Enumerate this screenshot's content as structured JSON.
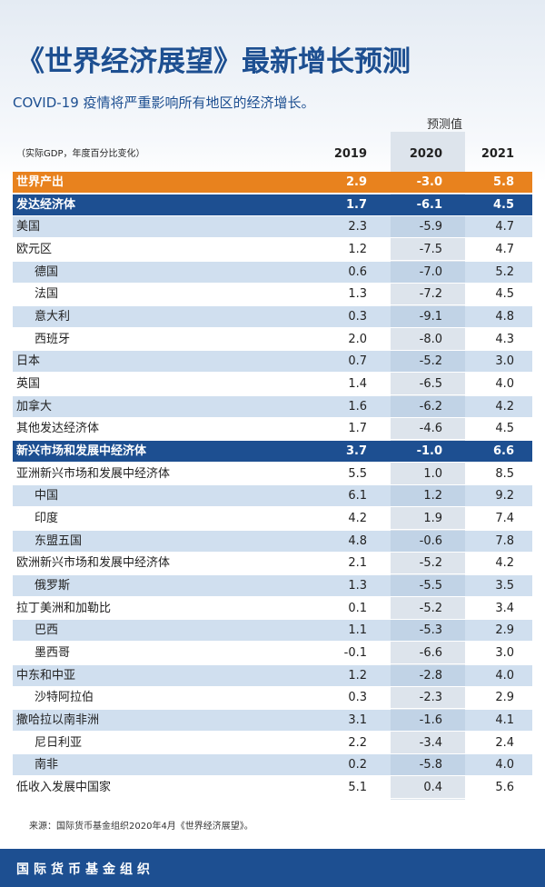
{
  "header": {
    "title": "《世界经济展望》最新增长预测",
    "subtitle": "COVID-19 疫情将严重影响所有地区的经济增长。",
    "forecast_label": "预测值"
  },
  "table": {
    "columns": [
      "（实际GDP，年度百分比变化）",
      "2019",
      "2020",
      "2021"
    ],
    "rows": [
      {
        "cells": [
          "世界产出",
          "2.9",
          "-3.0",
          "5.8"
        ],
        "fill": "#e8821e"
      },
      {
        "cells": [
          "发达经济体",
          "1.7",
          "-6.1",
          "4.5"
        ],
        "fill": "#1d4f91"
      },
      {
        "cells": [
          "美国",
          "2.3",
          "-5.9",
          "4.7"
        ]
      },
      {
        "cells": [
          "欧元区",
          "1.2",
          "-7.5",
          "4.7"
        ]
      },
      {
        "cells": [
          "德国",
          "0.6",
          "-7.0",
          "5.2"
        ],
        "indent": true
      },
      {
        "cells": [
          "法国",
          "1.3",
          "-7.2",
          "4.5"
        ],
        "indent": true
      },
      {
        "cells": [
          "意大利",
          "0.3",
          "-9.1",
          "4.8"
        ],
        "indent": true
      },
      {
        "cells": [
          "西班牙",
          "2.0",
          "-8.0",
          "4.3"
        ],
        "indent": true
      },
      {
        "cells": [
          "日本",
          "0.7",
          "-5.2",
          "3.0"
        ]
      },
      {
        "cells": [
          "英国",
          "1.4",
          "-6.5",
          "4.0"
        ]
      },
      {
        "cells": [
          "加拿大",
          "1.6",
          "-6.2",
          "4.2"
        ]
      },
      {
        "cells": [
          "其他发达经济体",
          "1.7",
          "-4.6",
          "4.5"
        ]
      },
      {
        "cells": [
          "新兴市场和发展中经济体",
          "3.7",
          "-1.0",
          "6.6"
        ],
        "fill": "#1d4f91"
      },
      {
        "cells": [
          "亚洲新兴市场和发展中经济体",
          "5.5",
          "1.0",
          "8.5"
        ]
      },
      {
        "cells": [
          "中国",
          "6.1",
          "1.2",
          "9.2"
        ],
        "indent": true
      },
      {
        "cells": [
          "印度",
          "4.2",
          "1.9",
          "7.4"
        ],
        "indent": true
      },
      {
        "cells": [
          "东盟五国",
          "4.8",
          "-0.6",
          "7.8"
        ],
        "indent": true
      },
      {
        "cells": [
          "欧洲新兴市场和发展中经济体",
          "2.1",
          "-5.2",
          "4.2"
        ]
      },
      {
        "cells": [
          "俄罗斯",
          "1.3",
          "-5.5",
          "3.5"
        ],
        "indent": true
      },
      {
        "cells": [
          "拉丁美洲和加勒比",
          "0.1",
          "-5.2",
          "3.4"
        ]
      },
      {
        "cells": [
          "巴西",
          "1.1",
          "-5.3",
          "2.9"
        ],
        "indent": true
      },
      {
        "cells": [
          "墨西哥",
          "-0.1",
          "-6.6",
          "3.0"
        ],
        "indent": true
      },
      {
        "cells": [
          "中东和中亚",
          "1.2",
          "-2.8",
          "4.0"
        ]
      },
      {
        "cells": [
          "沙特阿拉伯",
          "0.3",
          "-2.3",
          "2.9"
        ],
        "indent": true
      },
      {
        "cells": [
          "撒哈拉以南非洲",
          "3.1",
          "-1.6",
          "4.1"
        ]
      },
      {
        "cells": [
          "尼日利亚",
          "2.2",
          "-3.4",
          "2.4"
        ],
        "indent": true
      },
      {
        "cells": [
          "南非",
          "0.2",
          "-5.8",
          "4.0"
        ],
        "indent": true
      },
      {
        "cells": [
          "低收入发展中国家",
          "5.1",
          "0.4",
          "5.6"
        ]
      }
    ]
  },
  "footer": {
    "source": "来源：国际货币基金组织2020年4月《世界经济展望》。",
    "organization": "国际货币基金组织"
  }
}
